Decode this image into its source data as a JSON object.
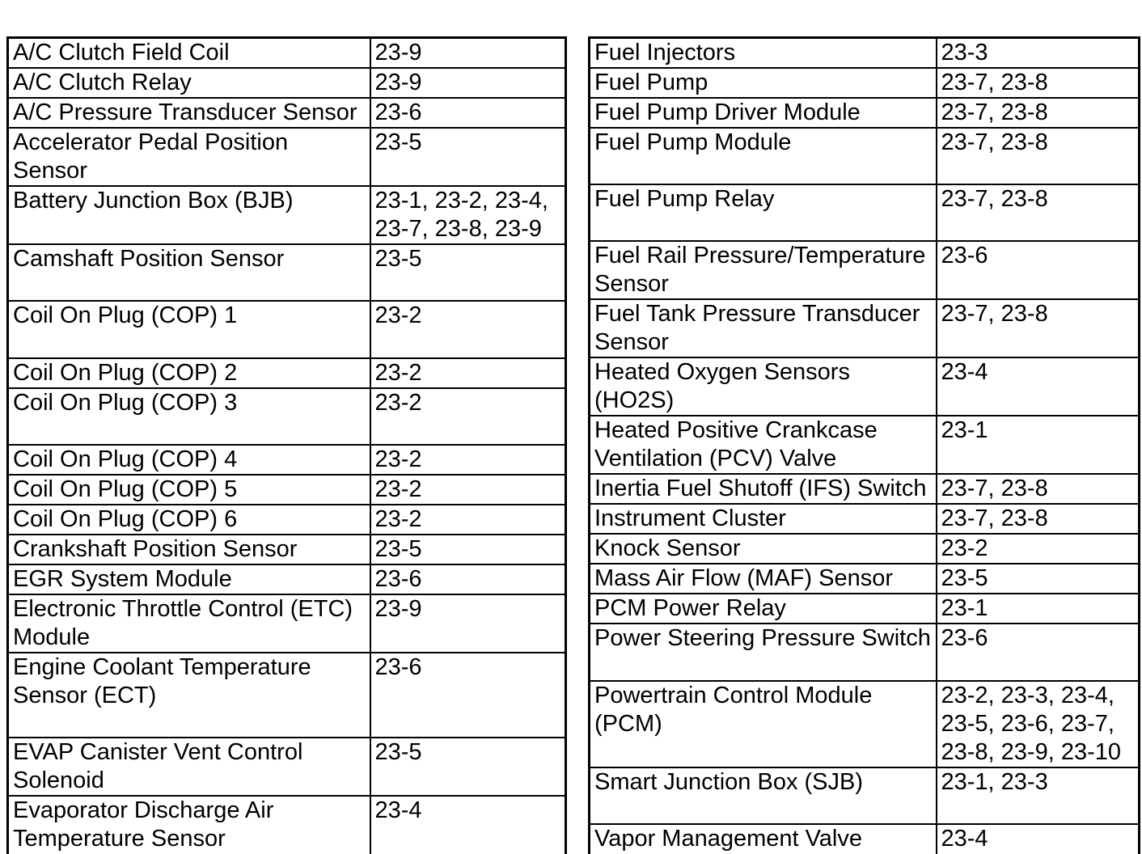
{
  "page": {
    "background_color": "#ffffff",
    "text_color": "#000000",
    "border_color": "#000000",
    "description": "Component index table with page references"
  },
  "index_tables": {
    "left": {
      "rows": [
        {
          "component": "A/C Clutch Field Coil",
          "pages": "23-9"
        },
        {
          "component": "A/C Clutch Relay",
          "pages": "23-9"
        },
        {
          "component": "A/C Pressure Transducer Sensor",
          "pages": "23-6"
        },
        {
          "component": "Accelerator Pedal Position Sensor",
          "pages": "23-5"
        },
        {
          "component": "Battery Junction Box (BJB)",
          "pages": "23-1, 23-2, 23-4, 23-7, 23-8, 23-9"
        },
        {
          "component": "Camshaft Position Sensor",
          "pages": "23-5"
        },
        {
          "component": "Coil On Plug (COP) 1",
          "pages": "23-2"
        },
        {
          "component": "Coil On Plug (COP) 2",
          "pages": "23-2"
        },
        {
          "component": "Coil On Plug (COP) 3",
          "pages": "23-2"
        },
        {
          "component": "Coil On Plug (COP) 4",
          "pages": "23-2"
        },
        {
          "component": "Coil On Plug (COP) 5",
          "pages": "23-2"
        },
        {
          "component": "Coil On Plug (COP) 6",
          "pages": "23-2"
        },
        {
          "component": "Crankshaft Position Sensor",
          "pages": "23-5"
        },
        {
          "component": "EGR System Module",
          "pages": "23-6"
        },
        {
          "component": "Electronic Throttle Control (ETC) Module",
          "pages": "23-9"
        },
        {
          "component": "Engine Coolant Temperature Sensor (ECT)",
          "pages": "23-6"
        },
        {
          "component": "EVAP Canister Vent Control Solenoid",
          "pages": "23-5"
        },
        {
          "component": "Evaporator Discharge Air Temperature Sensor",
          "pages": "23-4"
        }
      ]
    },
    "right": {
      "rows": [
        {
          "component": "Fuel Injectors",
          "pages": "23-3"
        },
        {
          "component": "Fuel Pump",
          "pages": "23-7, 23-8"
        },
        {
          "component": "Fuel Pump Driver Module",
          "pages": "23-7, 23-8"
        },
        {
          "component": "Fuel Pump Module",
          "pages": "23-7, 23-8"
        },
        {
          "component": "Fuel Pump Relay",
          "pages": "23-7, 23-8"
        },
        {
          "component": "Fuel Rail Pressure/Temperature Sensor",
          "pages": "23-6"
        },
        {
          "component": "Fuel Tank Pressure Transducer Sensor",
          "pages": "23-7, 23-8"
        },
        {
          "component": "Heated Oxygen Sensors (HO2S)",
          "pages": "23-4"
        },
        {
          "component": "Heated Positive Crankcase Ventilation (PCV) Valve",
          "pages": "23-1"
        },
        {
          "component": "Inertia Fuel Shutoff (IFS) Switch",
          "pages": "23-7, 23-8"
        },
        {
          "component": "Instrument Cluster",
          "pages": "23-7, 23-8"
        },
        {
          "component": "Knock Sensor",
          "pages": "23-2"
        },
        {
          "component": "Mass Air Flow (MAF) Sensor",
          "pages": "23-5"
        },
        {
          "component": "PCM Power Relay",
          "pages": "23-1"
        },
        {
          "component": "Power Steering Pressure Switch",
          "pages": "23-6"
        },
        {
          "component": "Powertrain Control Module (PCM)",
          "pages": "23-2, 23-3, 23-4, 23-5, 23-6, 23-7, 23-8, 23-9, 23-10"
        },
        {
          "component": "Smart Junction Box (SJB)",
          "pages": "23-1, 23-3"
        },
        {
          "component": "Vapor Management Valve",
          "pages": "23-4"
        }
      ]
    }
  }
}
